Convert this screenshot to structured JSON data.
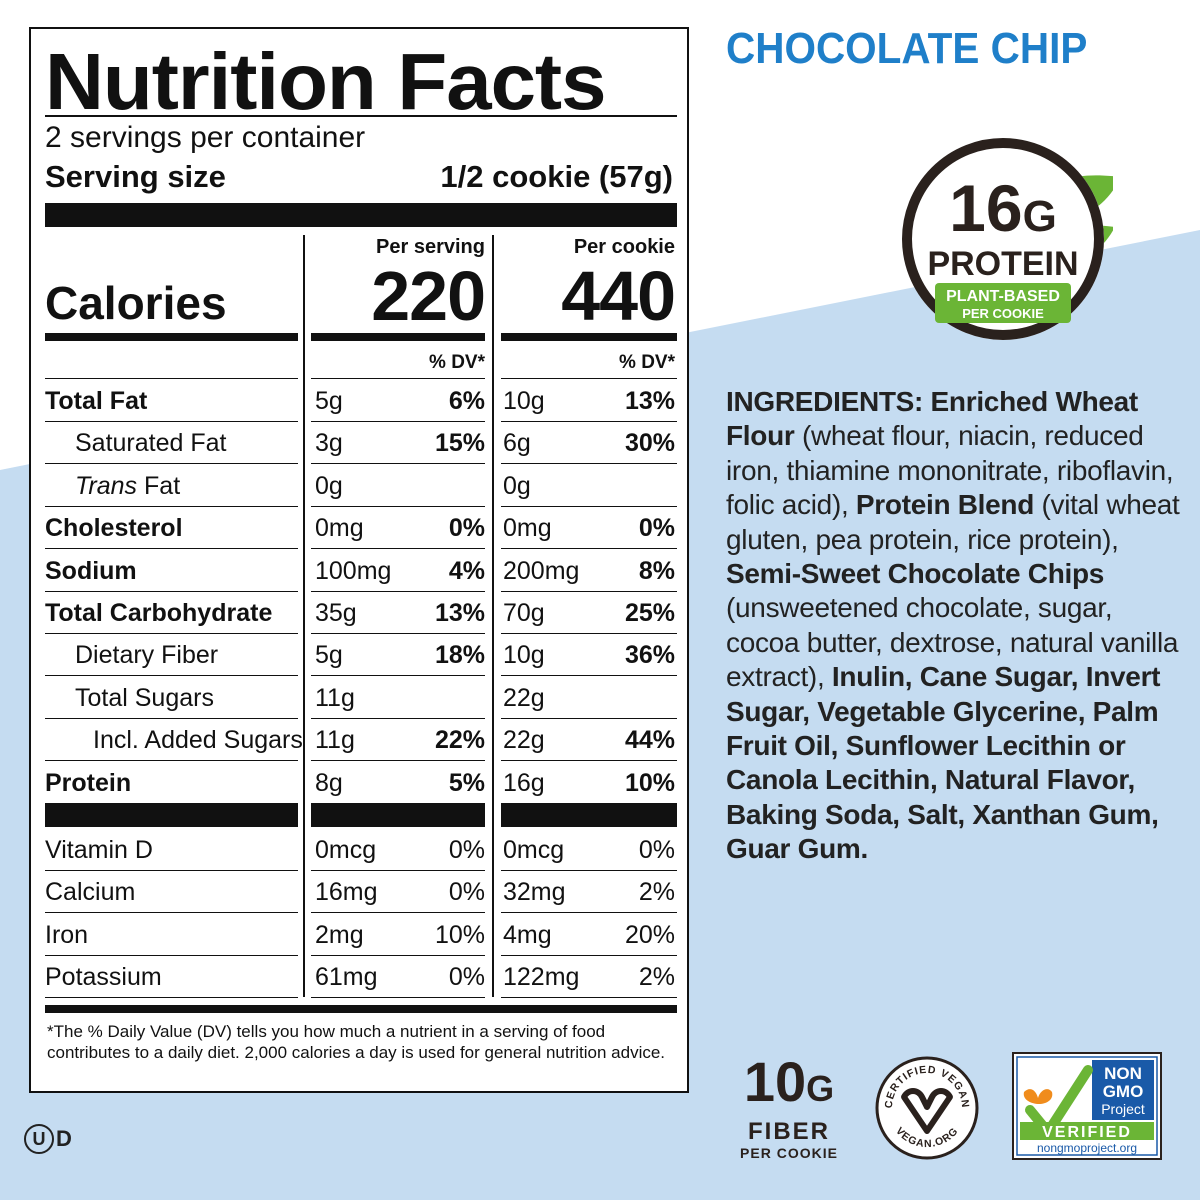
{
  "colors": {
    "blue_bg": "#c5dcf1",
    "brand_blue": "#1f7fc9",
    "brown": "#2a211d",
    "green": "#6bb536",
    "nongmo_blue": "#1a5aa8"
  },
  "panel": {
    "title": "Nutrition Facts",
    "servings": "2 servings per container",
    "serving_size_label": "Serving size",
    "serving_size_value": "1/2 cookie (57g)",
    "col1_header": "Per serving",
    "col2_header": "Per cookie",
    "calories_label": "Calories",
    "calories_serving": "220",
    "calories_cookie": "440",
    "dv_header": "% DV*",
    "rows": [
      {
        "name": "Total Fat",
        "a": "5g",
        "adv": "6%",
        "b": "10g",
        "bdv": "13%"
      },
      {
        "name": "Saturated Fat",
        "a": "3g",
        "adv": "15%",
        "b": "6g",
        "bdv": "30%"
      },
      {
        "name": "Fat",
        "name_prefix": "Trans",
        "a": "0g",
        "adv": "",
        "b": "0g",
        "bdv": ""
      },
      {
        "name": "Cholesterol",
        "a": "0mg",
        "adv": "0%",
        "b": "0mg",
        "bdv": "0%"
      },
      {
        "name": "Sodium",
        "a": "100mg",
        "adv": "4%",
        "b": "200mg",
        "bdv": "8%"
      },
      {
        "name": "Total Carbohydrate",
        "a": "35g",
        "adv": "13%",
        "b": "70g",
        "bdv": "25%"
      },
      {
        "name": "Dietary Fiber",
        "a": "5g",
        "adv": "18%",
        "b": "10g",
        "bdv": "36%"
      },
      {
        "name": "Total Sugars",
        "a": "11g",
        "adv": "",
        "b": "22g",
        "bdv": ""
      },
      {
        "name": "Incl. Added Sugars",
        "a": "11g",
        "adv": "22%",
        "b": "22g",
        "bdv": "44%"
      },
      {
        "name": "Protein",
        "a": "8g",
        "adv": "5%",
        "b": "16g",
        "bdv": "10%"
      }
    ],
    "vitamins": [
      {
        "name": "Vitamin D",
        "a": "0mcg",
        "adv": "0%",
        "b": "0mcg",
        "bdv": "0%"
      },
      {
        "name": "Calcium",
        "a": "16mg",
        "adv": "0%",
        "b": "32mg",
        "bdv": "2%"
      },
      {
        "name": "Iron",
        "a": "2mg",
        "adv": "10%",
        "b": "4mg",
        "bdv": "20%"
      },
      {
        "name": "Potassium",
        "a": "61mg",
        "adv": "0%",
        "b": "122mg",
        "bdv": "2%"
      }
    ],
    "footnote": "*The % Daily Value (DV) tells you how much a nutrient in a serving of food contributes to a daily diet. 2,000 calories a day is used for general nutrition advice."
  },
  "kosher": {
    "circle": "U",
    "letter": "D"
  },
  "flavor": "CHOCOLATE CHIP",
  "badge": {
    "amount": "16",
    "unit": "G",
    "label": "PROTEIN",
    "line1": "PLANT-BASED",
    "line2": "PER COOKIE"
  },
  "ingredients": [
    {
      "t": "INGREDIENTS: Enriched Wheat Flour",
      "b": true
    },
    {
      "t": " (wheat flour, niacin, reduced iron, thiamine mononitrate, riboflavin, folic acid), ",
      "b": false
    },
    {
      "t": "Protein Blend",
      "b": true
    },
    {
      "t": " (vital wheat gluten, pea protein, rice protein), ",
      "b": false
    },
    {
      "t": "Semi-Sweet Chocolate Chips",
      "b": true
    },
    {
      "t": " (unsweetened chocolate, sugar, cocoa butter, dextrose, natural vanilla extract), ",
      "b": false
    },
    {
      "t": "Inulin, Cane Sugar, Invert Sugar, Vegetable Glycerine, Palm Fruit Oil, Sunflower Lecithin or Canola Lecithin, Natural Flavor, Baking Soda, Salt, Xanthan Gum, Guar Gum.",
      "b": true
    }
  ],
  "fiber": {
    "amount": "10",
    "unit": "G",
    "label": "FIBER",
    "sub": "PER COOKIE"
  },
  "vegan": {
    "top": "CERTIFIED VEGAN",
    "bottom": "VEGAN.ORG"
  },
  "nongmo": {
    "l1": "NON",
    "l2": "GMO",
    "l3": "Project",
    "verified": "VERIFIED",
    "url": "nongmoproject.org"
  }
}
